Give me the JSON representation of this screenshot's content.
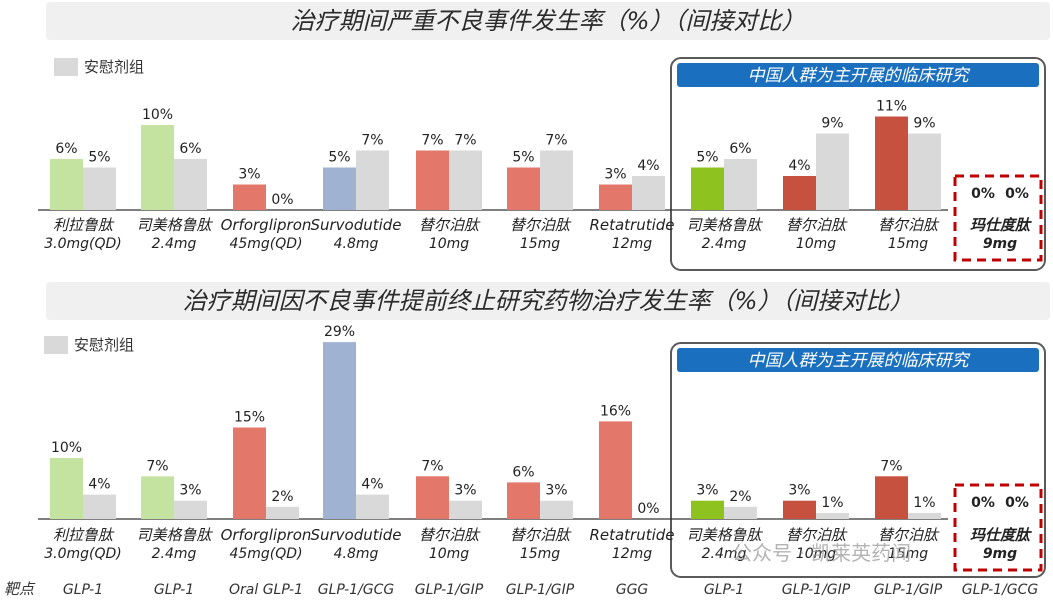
{
  "titles": {
    "top": "治疗期间严重不良事件发生率（%）（间接对比）",
    "bottom": "治疗期间因不良事件提前终止研究药物治疗发生率（%）（间接对比）"
  },
  "legend": {
    "placebo": "安慰剂组"
  },
  "china_box_label": "中国人群为主开展的临床研究",
  "target_label": "靶点",
  "watermark": "公众号 · 凯莱英药闻",
  "colors": {
    "lime": "#c5e3a0",
    "lime_strong": "#8dc21f",
    "blue": "#9fb2d2",
    "salmon": "#e2776a",
    "red": "#c7513f",
    "placebo": "#d9d9d9",
    "header_blue": "#1a6fbf",
    "dashed_red": "#c00000"
  },
  "chart_data": [
    {
      "type": "bar",
      "title": "治疗期间严重不良事件发生率（%）（间接对比）",
      "unit": "%",
      "categories": [
        {
          "name": "利拉鲁肽",
          "dose": "3.0mg(QD)"
        },
        {
          "name": "司美格鲁肽",
          "dose": "2.4mg"
        },
        {
          "name": "Orforglipron",
          "dose": "45mg(QD)"
        },
        {
          "name": "Survodutide",
          "dose": "4.8mg"
        },
        {
          "name": "替尔泊肽",
          "dose": "10mg"
        },
        {
          "name": "替尔泊肽",
          "dose": "15mg"
        },
        {
          "name": "Retatrutide",
          "dose": "12mg"
        },
        {
          "name": "司美格鲁肽",
          "dose": "2.4mg"
        },
        {
          "name": "替尔泊肽",
          "dose": "10mg"
        },
        {
          "name": "替尔泊肽",
          "dose": "15mg"
        },
        {
          "name": "玛仕度肽",
          "dose": "9mg"
        }
      ],
      "series": [
        {
          "name": "",
          "values": [
            6,
            10,
            3,
            5,
            7,
            5,
            3,
            5,
            4,
            11,
            0
          ],
          "labels": [
            "6%",
            "10%",
            "3%",
            "5%",
            "7%",
            "5%",
            "3%",
            "5%",
            "4%",
            "11%",
            "0%"
          ],
          "colors": [
            "lime",
            "lime",
            "salmon",
            "blue",
            "salmon",
            "salmon",
            "salmon",
            "lime_strong",
            "red",
            "red",
            "red"
          ]
        },
        {
          "name": "安慰剂组",
          "values": [
            5,
            6,
            0,
            7,
            7,
            7,
            4,
            6,
            9,
            9,
            0
          ],
          "labels": [
            "5%",
            "6%",
            "0%",
            "7%",
            "7%",
            "7%",
            "4%",
            "6%",
            "9%",
            "9%",
            "0%"
          ]
        }
      ]
    },
    {
      "type": "bar",
      "title": "治疗期间因不良事件提前终止研究药物治疗发生率（%）（间接对比）",
      "unit": "%",
      "categories": [
        {
          "name": "利拉鲁肽",
          "dose": "3.0mg(QD)"
        },
        {
          "name": "司美格鲁肽",
          "dose": "2.4mg"
        },
        {
          "name": "Orforglipron",
          "dose": "45mg(QD)"
        },
        {
          "name": "Survodutide",
          "dose": "4.8mg"
        },
        {
          "name": "替尔泊肽",
          "dose": "10mg"
        },
        {
          "name": "替尔泊肽",
          "dose": "15mg"
        },
        {
          "name": "Retatrutide",
          "dose": "12mg"
        },
        {
          "name": "司美格鲁肽",
          "dose": "2.4mg"
        },
        {
          "name": "替尔泊肽",
          "dose": "10mg"
        },
        {
          "name": "替尔泊肽",
          "dose": "15mg"
        },
        {
          "name": "玛仕度肽",
          "dose": "9mg"
        }
      ],
      "series": [
        {
          "name": "",
          "values": [
            10,
            7,
            15,
            29,
            7,
            6,
            16,
            3,
            3,
            7,
            0
          ],
          "labels": [
            "10%",
            "7%",
            "15%",
            "29%",
            "7%",
            "6%",
            "16%",
            "3%",
            "3%",
            "7%",
            "0%"
          ],
          "colors": [
            "lime",
            "lime",
            "salmon",
            "blue",
            "salmon",
            "salmon",
            "salmon",
            "lime_strong",
            "red",
            "red",
            "red"
          ]
        },
        {
          "name": "安慰剂组",
          "values": [
            4,
            3,
            2,
            4,
            3,
            3,
            0,
            2,
            1,
            1,
            0
          ],
          "labels": [
            "4%",
            "3%",
            "2%",
            "4%",
            "3%",
            "3%",
            "0%",
            "2%",
            "1%",
            "1%",
            "0%"
          ]
        }
      ],
      "targets": [
        "GLP-1",
        "GLP-1",
        "Oral GLP-1",
        "GLP-1/GCG",
        "GLP-1/GIP",
        "GLP-1/GIP",
        "GGG",
        "GLP-1",
        "GLP-1/GIP",
        "GLP-1/GIP",
        "GLP-1/GCG"
      ]
    }
  ]
}
